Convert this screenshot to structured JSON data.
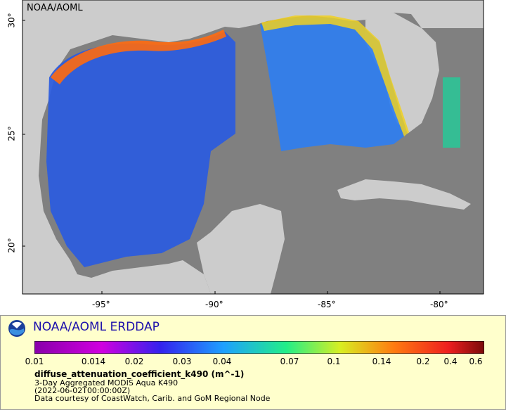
{
  "map": {
    "credit": "NOAA/AOML",
    "lat_ticks": [
      "30°",
      "25°",
      "20°"
    ],
    "lon_ticks": [
      "-95°",
      "-90°",
      "-85°",
      "-80°"
    ]
  },
  "colors": {
    "land": "#cccccc",
    "nodata": "#808080",
    "legend_bg": "#ffffcc",
    "brand": "#1a0dab"
  },
  "legend": {
    "brand": "NOAA/AOML ERDDAP",
    "colorbar_labels": [
      "0.01",
      "0.014",
      "0.02",
      "0.03",
      "0.04",
      "0.07",
      "0.1",
      "0.14",
      "0.2",
      "0.4",
      "0.6"
    ],
    "variable": "diffuse_attenuation_coefficient_k490 (m^-1)",
    "dataset": "3-Day Aggregated MODIS Aqua K490",
    "time": "(2022-06-02T00:00:00Z)",
    "courtesy": "Data courtesy of CoastWatch, Carib. and GoM Regional Node"
  }
}
